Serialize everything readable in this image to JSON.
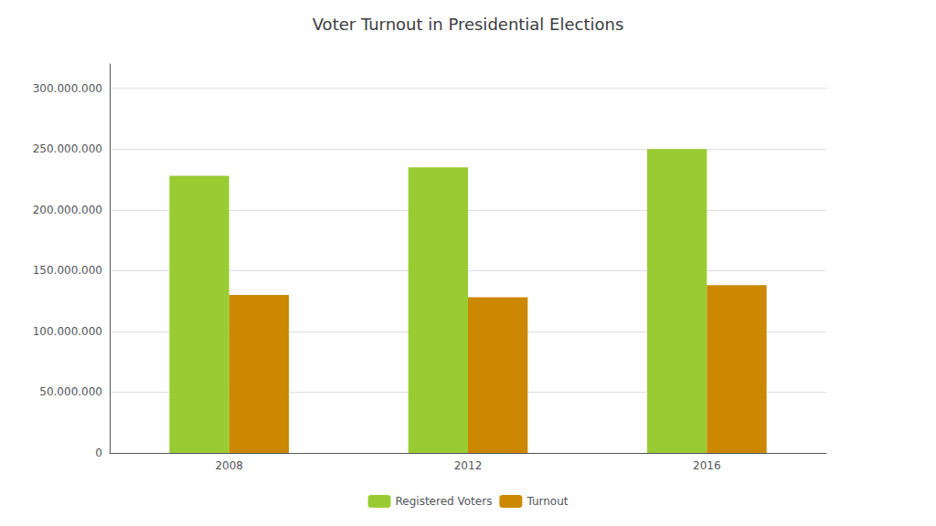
{
  "chart_data": {
    "type": "bar",
    "title": "Voter Turnout in Presidential Elections",
    "categories": [
      "2008",
      "2012",
      "2016"
    ],
    "series": [
      {
        "name": "Registered Voters",
        "color": "#99cc33",
        "values": [
          228000000,
          235000000,
          250000000
        ]
      },
      {
        "name": "Turnout",
        "color": "#cc8800",
        "values": [
          130000000,
          128000000,
          138000000
        ]
      }
    ],
    "ylim": [
      0,
      320000000
    ],
    "yticks": [
      0,
      {
        "value": 50000000,
        "label": "50.000.000"
      },
      {
        "value": 100000000,
        "label": "100.000.000"
      },
      {
        "value": 150000000,
        "label": "150.000.000"
      },
      {
        "value": 200000000,
        "label": "200.000.000"
      },
      {
        "value": 250000000,
        "label": "250.000.000"
      },
      {
        "value": 300000000,
        "label": "300.000.000"
      }
    ],
    "grid": true,
    "legend": "bottom"
  }
}
